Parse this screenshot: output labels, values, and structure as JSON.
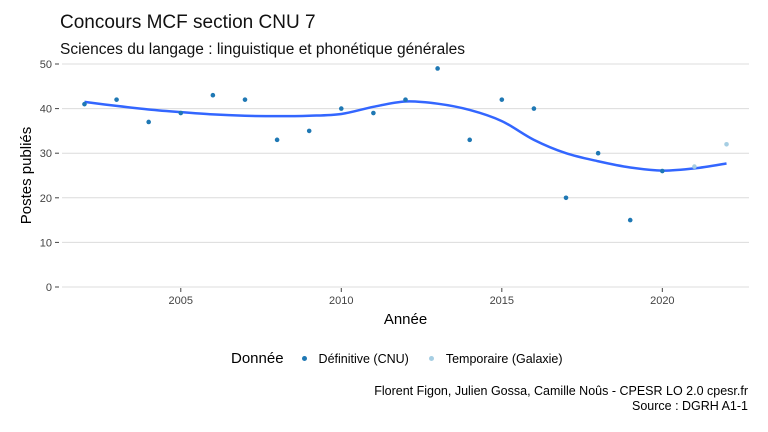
{
  "title": "Concours MCF section CNU 7",
  "subtitle": "Sciences du langage : linguistique et phonétique générales",
  "caption_line1": "Florent Figon, Julien Gossa, Camille Noûs - CPESR LO 2.0 cpesr.fr",
  "caption_line2": "Source : DGRH A1-1",
  "legend": {
    "title": "Donnée",
    "items": [
      "Définitive (CNU)",
      "Temporaire (Galaxie)"
    ]
  },
  "colors": {
    "definitive": "#1f78b4",
    "temporaire": "#a6cee3",
    "smooth": "#3366ff",
    "grid": "#dcdcdc"
  },
  "chart_data": {
    "type": "scatter",
    "title": "Concours MCF section CNU 7",
    "subtitle": "Sciences du langage : linguistique et phonétique générales",
    "xlabel": "Année",
    "ylabel": "Postes publiés",
    "xlim": [
      2001.3,
      2022.7
    ],
    "ylim": [
      0,
      50
    ],
    "x_ticks": [
      2005,
      2010,
      2015,
      2020
    ],
    "y_ticks": [
      0,
      10,
      20,
      30,
      40,
      50
    ],
    "grid": true,
    "legend_position": "bottom",
    "series": [
      {
        "name": "Définitive (CNU)",
        "x": [
          2002,
          2003,
          2004,
          2005,
          2006,
          2007,
          2008,
          2009,
          2010,
          2011,
          2012,
          2013,
          2014,
          2015,
          2016,
          2017,
          2018,
          2019,
          2020
        ],
        "y": [
          41,
          42,
          37,
          39,
          43,
          42,
          33,
          35,
          40,
          39,
          42,
          49,
          33,
          42,
          40,
          20,
          30,
          15,
          26
        ]
      },
      {
        "name": "Temporaire (Galaxie)",
        "x": [
          2021,
          2022
        ],
        "y": [
          27,
          32
        ]
      }
    ],
    "smooth_line": {
      "x": [
        2002,
        2003,
        2004,
        2005,
        2006,
        2007,
        2008,
        2009,
        2010,
        2011,
        2012,
        2013,
        2014,
        2015,
        2016,
        2017,
        2018,
        2019,
        2020,
        2021,
        2022
      ],
      "y": [
        41.5,
        40.6,
        39.8,
        39.2,
        38.7,
        38.4,
        38.3,
        38.4,
        38.8,
        40.4,
        41.6,
        41.1,
        39.7,
        37.2,
        33.0,
        30.0,
        28.2,
        26.8,
        26.1,
        26.6,
        27.7
      ]
    }
  }
}
